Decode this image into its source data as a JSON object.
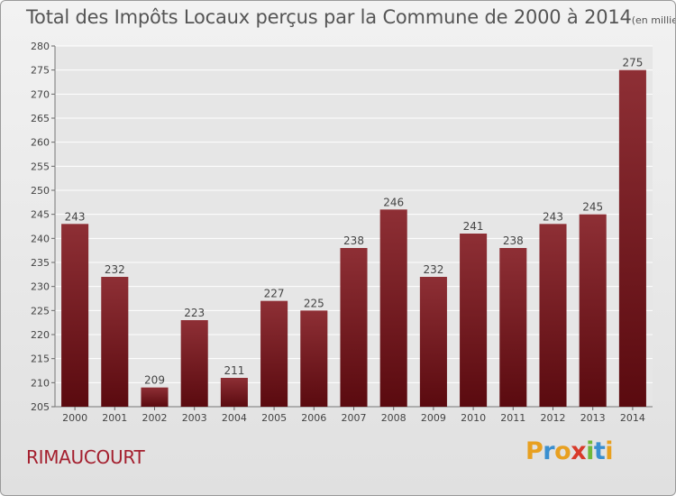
{
  "chart_data": {
    "type": "bar",
    "title": "Total des Impôts Locaux perçus par la Commune de 2000 à 2014",
    "subtitle": "(en milliers d'€)",
    "categories": [
      "2000",
      "2001",
      "2002",
      "2003",
      "2004",
      "2005",
      "2006",
      "2007",
      "2008",
      "2009",
      "2010",
      "2011",
      "2012",
      "2013",
      "2014"
    ],
    "values": [
      243,
      232,
      209,
      223,
      211,
      227,
      225,
      238,
      246,
      232,
      241,
      238,
      243,
      245,
      275
    ],
    "ylim": [
      205,
      280
    ],
    "yticks": [
      205,
      210,
      215,
      220,
      225,
      230,
      235,
      240,
      245,
      250,
      255,
      260,
      265,
      270,
      275,
      280
    ],
    "grid": true,
    "legend": "none",
    "bar_color_top": "#8e2f35",
    "bar_color_bottom": "#5a0a0f"
  },
  "commune": "RIMAUCOURT",
  "logo": {
    "letters": [
      "P",
      "r",
      "o",
      "x",
      "i",
      "t",
      "i"
    ],
    "colors": [
      "#e8a020",
      "#3a8fd0",
      "#e8a020",
      "#d83a2a",
      "#6fb83a",
      "#3a8fd0",
      "#e8a020"
    ]
  }
}
